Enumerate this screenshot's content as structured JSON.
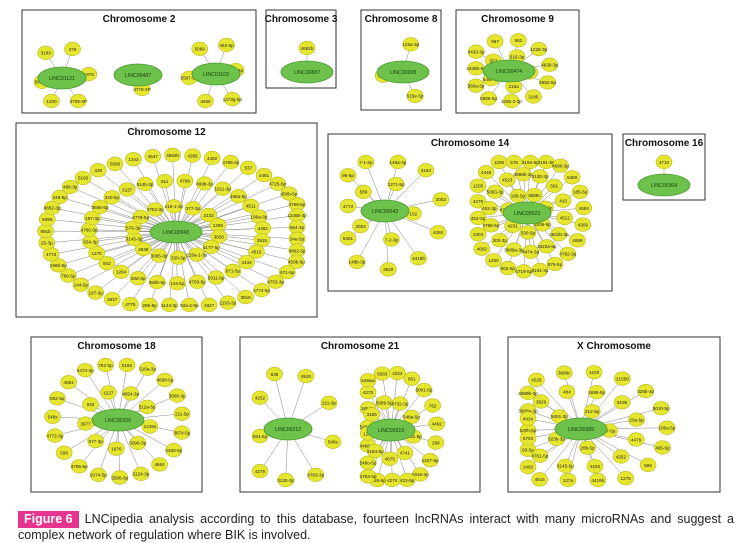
{
  "figure": {
    "label": "Figure 6",
    "caption": "LNCipedia analysis according to this database, fourteen lncRNAs interact with many microRNAs and suggest a complex network of regulation where BIK is involved."
  },
  "colors": {
    "hub": "#6cc24a",
    "mirna": "#e6e62e",
    "frame": "#333333",
    "edge": "#888888",
    "label_bg": "#e6358f"
  },
  "panels": [
    {
      "title": "Chromosome 2",
      "hubs": [
        {
          "label": "LINC01121",
          "mirnas": [
            "370",
            "1976",
            "4709-3P",
            "1200",
            "562-5P",
            "3183"
          ]
        },
        {
          "label": "LINC00487",
          "mirnas": [
            "4778-3P"
          ]
        },
        {
          "label": "LINC01103",
          "mirnas": [
            "452-5p",
            "330-3p",
            "1273g-5p",
            "4469",
            "5587-5P",
            "5089"
          ]
        }
      ]
    },
    {
      "title": "Chromosome 3",
      "hubs": [
        {
          "label": "LINC00887",
          "mirnas": [
            "4682b"
          ]
        }
      ]
    },
    {
      "title": "Chromosome 8",
      "hubs": [
        {
          "label": "LINC00208",
          "mirnas": [
            "125a-3p",
            "615e-5p",
            "3916"
          ]
        }
      ]
    },
    {
      "title": "Chromosome 9",
      "hubs": [
        {
          "label": "LINC00474",
          "mirnas": [
            "1228-3p",
            "4639-3p",
            "5582-5p",
            "3185",
            "125b-2-3p",
            "5585-5p",
            "560a-3p",
            "4436b-5p",
            "4433-3p",
            "567",
            "562",
            "616-3p",
            "3927",
            "216a",
            "548c-3p",
            "557"
          ]
        }
      ]
    },
    {
      "title": "Chromosome 12",
      "hubs": [
        {
          "label": "LINC00943",
          "mirnas": [
            "4766-5p",
            "1245b-3p",
            "664-3p",
            "34e-5p",
            "4802-3p",
            "450b-5p",
            "671-5p",
            "4753-3p",
            "4774-5p",
            "3916",
            "1193-3p",
            "1827",
            "92a-2-5p",
            "1144-3p",
            "285-5p",
            "4775",
            "3927",
            "197-3p",
            "144-5p",
            "766-5p",
            "196b-5p",
            "4773",
            "25-3p",
            "891b",
            "5096",
            "4652-3p",
            "346-5p",
            "488-3p",
            "5193",
            "438",
            "5690",
            "1343",
            "4647",
            "4662b",
            "4295",
            "4462",
            "4796-3p",
            "537",
            "4491",
            "4725-5p",
            "450b-5p",
            "196a-5p",
            "4511",
            "196a-3p",
            "4482",
            "3915",
            "4516",
            "4434",
            "671-5p",
            "5011-5p",
            "4793-5p",
            "144-5p",
            "450b-5p",
            "30d-3p",
            "1264",
            "942",
            "1275",
            "654-3p",
            "4760-3p",
            "197-3p",
            "3666-5p",
            "340-5p",
            "3137",
            "514b-3p",
            "511",
            "4796",
            "499b-3p",
            "1911-3p",
            "377-3p",
            "3133",
            "1295",
            "3656",
            "4177-5p",
            "219a-1-3p",
            "330-3p",
            "3065-3p",
            "4638",
            "3145-3p",
            "576-3p",
            "4778-5p",
            "4752-3p",
            "216-1-3p"
          ]
        }
      ]
    },
    {
      "title": "Chromosome 14",
      "hubs": [
        {
          "label": "LINC00643",
          "mirnas": [
            "3163",
            "2053",
            "4284",
            "4419b",
            "3920",
            "148b-3p",
            "5481",
            "4773",
            "96-5p",
            "7-1-3p",
            "148a-3p",
            "1271-5p",
            "152",
            "7-2-3p",
            "2053",
            "589"
          ]
        },
        {
          "label": "LINC00523",
          "mirnas": [
            "185-5p",
            "4684",
            "4309",
            "4698",
            "4782-3p",
            "876-5p",
            "3191-3p",
            "4719-5p",
            "502-5p",
            "1260",
            "4692",
            "4303",
            "452-3p",
            "4279",
            "1205",
            "4449",
            "1296",
            "578",
            "3194-5p",
            "3191-5p",
            "4690-3p",
            "5480",
            "581",
            "410",
            "4512",
            "3622b-3p",
            "3622a-5p",
            "4474-3p",
            "3689a-3p",
            "300-3p",
            "4788-5p",
            "452-3p",
            "5093-3p",
            "4523",
            "3689b-3p",
            "3130-3p",
            "3689c",
            "480-3p",
            "3206-5p",
            "330-5p",
            "4231",
            "4715-3p",
            "185-5p"
          ]
        }
      ]
    },
    {
      "title": "Chromosome 16",
      "hubs": [
        {
          "label": "LINC00304",
          "mirnas": [
            "4710"
          ]
        }
      ]
    },
    {
      "title": "Chromosome 18",
      "hubs": [
        {
          "label": "LINC00305",
          "mirnas": [
            "4668-5p",
            "3680-3p",
            "211-5p",
            "3874-5p",
            "2460-5p",
            "4664",
            "3124-3p",
            "5586-3p",
            "2074-5p",
            "4755-5p",
            "596",
            "4772-3p",
            "548s",
            "502-5p",
            "4661",
            "4474-3p",
            "762-5p",
            "5192",
            "516a-3p",
            "4654-3p",
            "512a-5p",
            "1245s",
            "5096-3p",
            "1976",
            "877-3p",
            "3977",
            "942",
            "1227"
          ]
        }
      ]
    },
    {
      "title": "Chromosome 21",
      "hubs": [
        {
          "label": "LINC00212",
          "mirnas": [
            "4530",
            "211-3p",
            "548s",
            "4783-3p",
            "3130-3p",
            "4279",
            "581-5p",
            "4252",
            "636"
          ]
        },
        {
          "label": "LINC00319",
          "mirnas": [
            "5001-5p",
            "762",
            "4492",
            "298",
            "1207-5p",
            "1915-3p",
            "423-5p",
            "4274",
            "4685-5p",
            "4783-3p",
            "548o-5p",
            "4468-3p",
            "548s-5p",
            "185-5p",
            "4273",
            "548aw",
            "5683",
            "4323",
            "661",
            "4732-3p",
            "548a-5p",
            "4731-5p",
            "4741",
            "4675",
            "3184-5p",
            "1205",
            "3185",
            "5089-5p"
          ]
        }
      ]
    },
    {
      "title": "X Chromosome",
      "hubs": [
        {
          "label": "LINC00389",
          "mirnas": [
            "5010-5p",
            "106a-5p",
            "465-5p",
            "596",
            "1275",
            "4419b",
            "127a",
            "4516",
            "1493",
            "93-5p",
            "106b-5p",
            "3689a-3p",
            "3689b-3p",
            "4525",
            "3689c",
            "1229",
            "21558",
            "328b-3p",
            "5196",
            "20a-5p",
            "4479",
            "4252",
            "3192",
            "3145-5p",
            "4761-5p",
            "5703",
            "4434",
            "3929",
            "484",
            "4695-5p",
            "212-5p",
            "17-5p",
            "20b-5p",
            "323b-3p",
            "5001-3p"
          ]
        }
      ]
    }
  ]
}
